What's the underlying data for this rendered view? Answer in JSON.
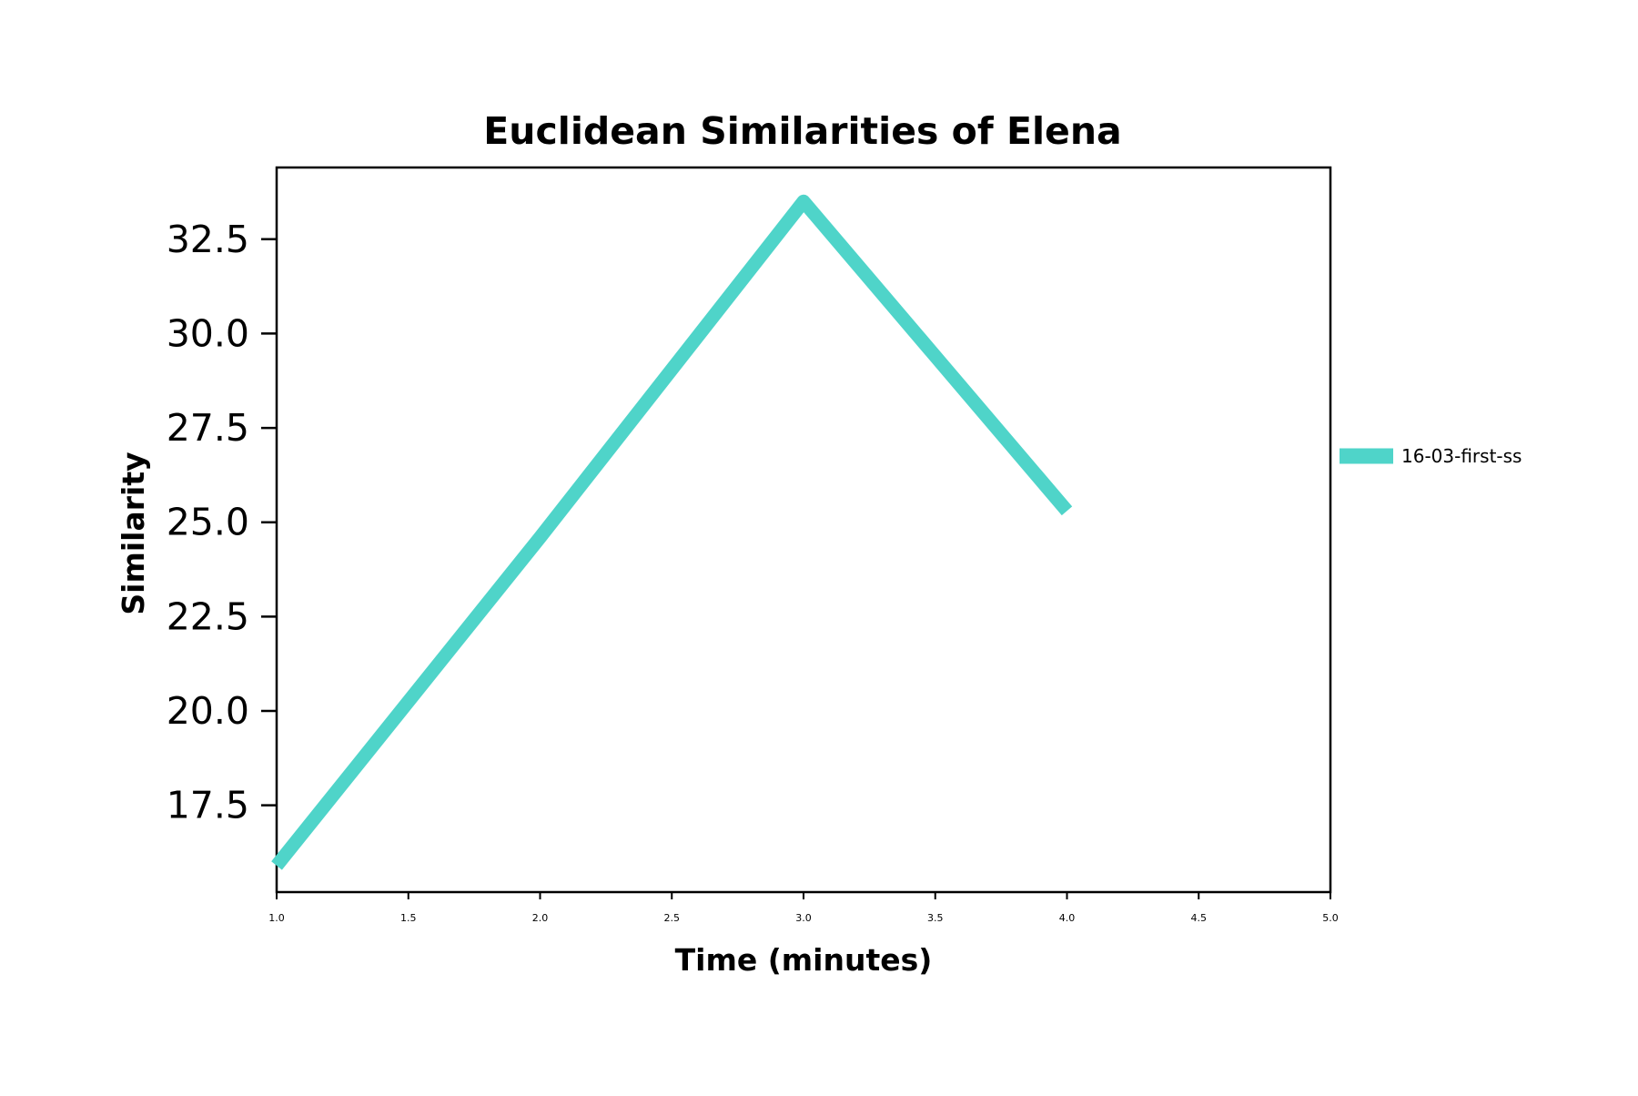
{
  "chart_data": {
    "type": "line",
    "title": "Euclidean Similarities of Elena",
    "xlabel": "Time (minutes)",
    "ylabel": "Similarity",
    "xlim": [
      1.0,
      5.0
    ],
    "ylim": [
      15.2,
      34.4
    ],
    "x_ticks": [
      1.0,
      1.5,
      2.0,
      2.5,
      3.0,
      3.5,
      4.0,
      4.5,
      5.0
    ],
    "x_tick_labels": [
      "1.0",
      "1.5",
      "2.0",
      "2.5",
      "3.0",
      "3.5",
      "4.0",
      "4.5",
      "5.0"
    ],
    "y_ticks": [
      17.5,
      20.0,
      22.5,
      25.0,
      27.5,
      30.0,
      32.5
    ],
    "y_tick_labels": [
      "17.5",
      "20.0",
      "22.5",
      "25.0",
      "27.5",
      "30.0",
      "32.5"
    ],
    "grid": false,
    "legend_position": "outside-right",
    "series": [
      {
        "name": "16-03-first-ss",
        "color": "#4fd4c9",
        "x": [
          1.0,
          2.0,
          3.0,
          4.0
        ],
        "y": [
          15.9,
          24.6,
          33.5,
          25.3
        ]
      }
    ]
  }
}
